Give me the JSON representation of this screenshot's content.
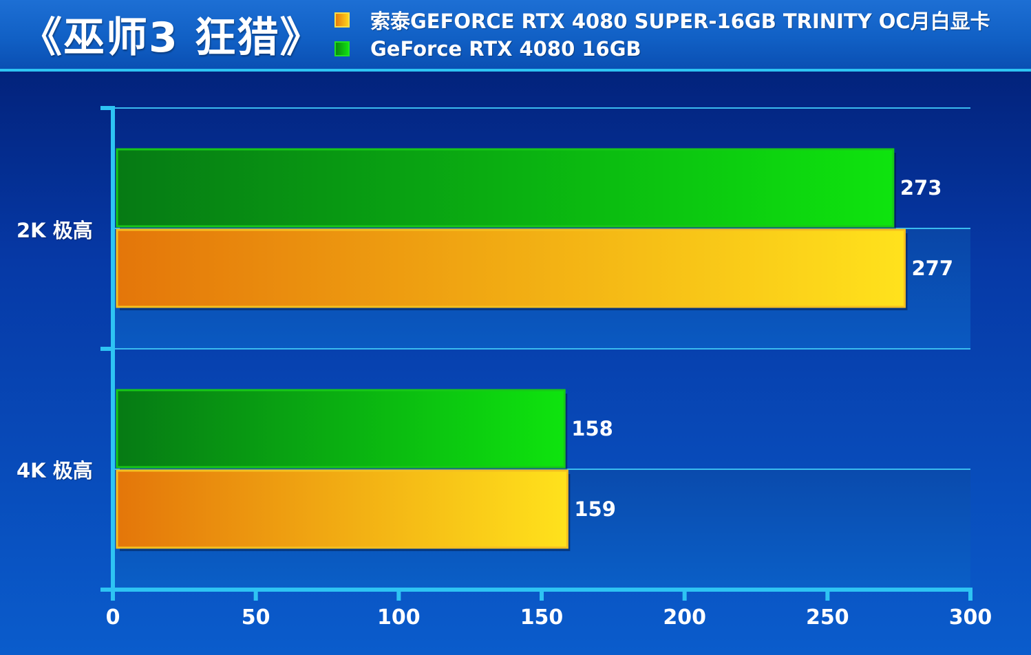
{
  "title": "《巫师3 狂猎》",
  "legend": [
    {
      "label": "索泰GEFORCE RTX 4080 SUPER-16GB TRINITY OC月白显卡",
      "color": "#f0a010"
    },
    {
      "label": "GeForce RTX 4080 16GB",
      "color": "#1fcf1f"
    }
  ],
  "chart_data": {
    "type": "bar",
    "orientation": "horizontal",
    "title": "《巫师3 狂猎》",
    "categories": [
      "2K 极高",
      "4K 极高"
    ],
    "series": [
      {
        "name": "GeForce RTX 4080 16GB",
        "values": [
          273,
          158
        ],
        "color": "#1fcf1f"
      },
      {
        "name": "索泰GEFORCE RTX 4080 SUPER-16GB TRINITY OC月白显卡",
        "values": [
          277,
          159
        ],
        "color": "#f0a010"
      }
    ],
    "xlim": [
      0,
      300
    ],
    "xticks": [
      "0",
      "50",
      "100",
      "150",
      "200",
      "250",
      "300"
    ],
    "grid": true,
    "legend_position": "top"
  }
}
